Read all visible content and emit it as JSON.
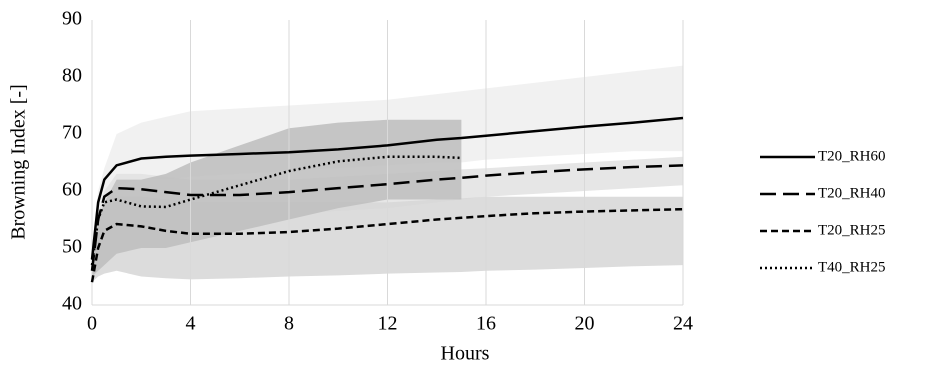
{
  "chart_data": {
    "type": "line",
    "xlabel": "Hours",
    "ylabel": "Browning Index [-]",
    "x": [
      0,
      0.25,
      0.5,
      1,
      2,
      3,
      4,
      6,
      8,
      10,
      12,
      14,
      15,
      16,
      18,
      20,
      22,
      24
    ],
    "xlim": [
      0,
      24
    ],
    "xticks": [
      0,
      4,
      8,
      12,
      16,
      20,
      24
    ],
    "ylim": [
      40,
      90
    ],
    "yticks": [
      40,
      50,
      60,
      70,
      80,
      90
    ],
    "grid": true,
    "legend": "right",
    "bands": [
      {
        "color": "#efefef",
        "upper": [
          50,
          60,
          64,
          70,
          72,
          73,
          74,
          74.5,
          75,
          75.5,
          76,
          77,
          77.5,
          78,
          79,
          80,
          81,
          82
        ],
        "lower": [
          48,
          55,
          58,
          61,
          62,
          62,
          62.5,
          63,
          63.5,
          64,
          64.5,
          65,
          65,
          65.5,
          66,
          66.5,
          67,
          67
        ]
      },
      {
        "color": "#e2e2e2",
        "upper": [
          48,
          56,
          60,
          63,
          63,
          62.5,
          62,
          62,
          62,
          62.5,
          63,
          63.5,
          63.8,
          64,
          64.5,
          65,
          65.5,
          66
        ],
        "lower": [
          45,
          50,
          53,
          55,
          56,
          56,
          56,
          56,
          56,
          56.5,
          57,
          58,
          58.5,
          59,
          59.5,
          60,
          60.5,
          61
        ]
      },
      {
        "color": "#d6d6d6",
        "upper": [
          47,
          54,
          57,
          59,
          59,
          58.5,
          58,
          58,
          58,
          58,
          58,
          58.5,
          58.7,
          59,
          59,
          59,
          59,
          59
        ],
        "lower": [
          44,
          45,
          45.5,
          46,
          45,
          44.7,
          44.5,
          44.7,
          45,
          45.2,
          45.5,
          45.7,
          45.8,
          46,
          46.2,
          46.5,
          46.8,
          47
        ]
      },
      {
        "color": "#bdbdbd",
        "upper": [
          50,
          55,
          58,
          62,
          62,
          63,
          65,
          68,
          71,
          72,
          72.5,
          72.5,
          72.5,
          null,
          null,
          null,
          null,
          null
        ],
        "lower": [
          45,
          46,
          47,
          49,
          50,
          50,
          51,
          53,
          55,
          57,
          58.5,
          58.5,
          58.5,
          null,
          null,
          null,
          null,
          null
        ]
      }
    ],
    "series": [
      {
        "name": "T20_RH60",
        "color": "#000000",
        "dash": "solid",
        "values": [
          48,
          58,
          62,
          64.5,
          65.7,
          66,
          66.2,
          66.5,
          66.8,
          67.3,
          68,
          69,
          69.3,
          69.7,
          70.5,
          71.3,
          72,
          72.8
        ]
      },
      {
        "name": "T20_RH40",
        "color": "#000000",
        "dash": "long",
        "values": [
          46,
          55,
          59,
          60.5,
          60.3,
          59.8,
          59.3,
          59.3,
          59.8,
          60.5,
          61.2,
          62,
          62.3,
          62.7,
          63.3,
          63.8,
          64.2,
          64.5
        ]
      },
      {
        "name": "T20_RH25",
        "color": "#000000",
        "dash": "short",
        "values": [
          44,
          50,
          53,
          54.2,
          53.8,
          53,
          52.5,
          52.5,
          52.8,
          53.4,
          54.2,
          55,
          55.3,
          55.6,
          56.1,
          56.4,
          56.6,
          56.8
        ]
      },
      {
        "name": "T40_RH25",
        "color": "#000000",
        "dash": "dot",
        "values": [
          47,
          55,
          58,
          58.5,
          57.3,
          57.2,
          58.5,
          61,
          63.5,
          65.2,
          66,
          66,
          65.8,
          null,
          null,
          null,
          null,
          null
        ]
      }
    ]
  }
}
